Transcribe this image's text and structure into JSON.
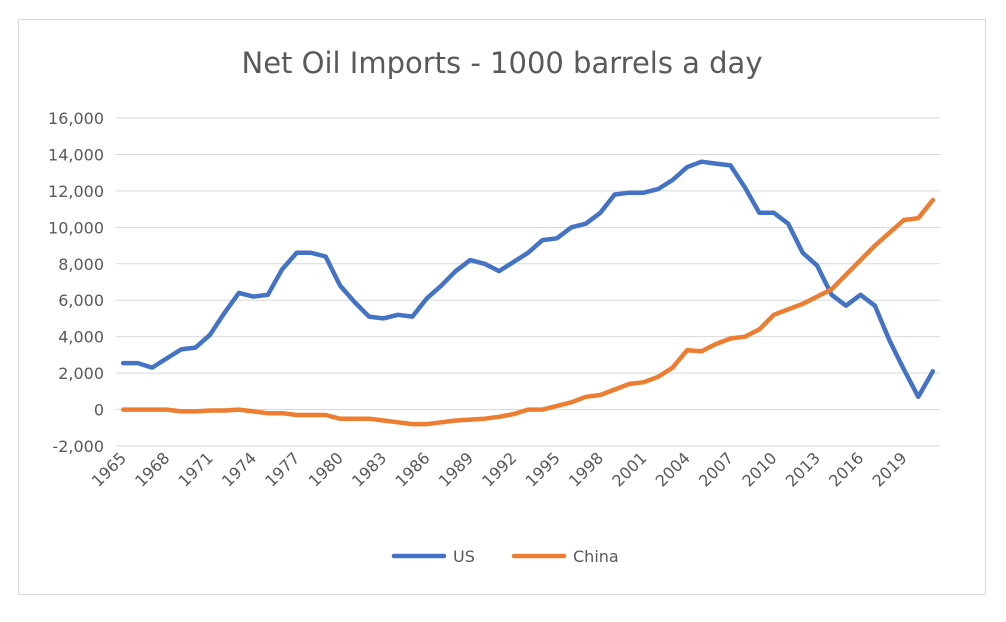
{
  "chart_data": {
    "type": "line",
    "title": "Net Oil Imports - 1000 barrels a day",
    "xlabel": "",
    "ylabel": "",
    "ylim": [
      -2000,
      16000
    ],
    "y_ticks": [
      "16,000",
      "14,000",
      "12,000",
      "10,000",
      "8,000",
      "6,000",
      "4,000",
      "2,000",
      "0",
      "-2,000"
    ],
    "x_tick_labels": [
      "1965",
      "1968",
      "1971",
      "1974",
      "1977",
      "1980",
      "1983",
      "1986",
      "1989",
      "1992",
      "1995",
      "1998",
      "2001",
      "2004",
      "2007",
      "2010",
      "2013",
      "2016",
      "2019"
    ],
    "grid": true,
    "legend_position": "bottom",
    "x": [
      1965,
      1966,
      1967,
      1968,
      1969,
      1970,
      1971,
      1972,
      1973,
      1974,
      1975,
      1976,
      1977,
      1978,
      1979,
      1980,
      1981,
      1982,
      1983,
      1984,
      1985,
      1986,
      1987,
      1988,
      1989,
      1990,
      1991,
      1992,
      1993,
      1994,
      1995,
      1996,
      1997,
      1998,
      1999,
      2000,
      2001,
      2002,
      2003,
      2004,
      2005,
      2006,
      2007,
      2008,
      2009,
      2010,
      2011,
      2012,
      2013,
      2014,
      2015,
      2016,
      2017,
      2018,
      2019,
      2020,
      2021
    ],
    "series": [
      {
        "name": "US",
        "color": "#4472C4",
        "values": [
          2550,
          2550,
          2300,
          2800,
          3300,
          3400,
          4100,
          5300,
          6400,
          6200,
          6300,
          7700,
          8600,
          8600,
          8400,
          6800,
          5900,
          5100,
          5000,
          5200,
          5100,
          6100,
          6800,
          7600,
          8200,
          8000,
          7600,
          8100,
          8600,
          9300,
          9400,
          10000,
          10200,
          10800,
          11800,
          11900,
          11900,
          12100,
          12600,
          13300,
          13600,
          13500,
          13400,
          12200,
          10800,
          10800,
          10200,
          8600,
          7900,
          6300,
          5700,
          6300,
          5700,
          3800,
          2200,
          700,
          2100
        ]
      },
      {
        "name": "China",
        "color": "#ED7D31",
        "values": [
          0,
          0,
          0,
          0,
          -100,
          -100,
          -50,
          -50,
          0,
          -100,
          -200,
          -200,
          -300,
          -300,
          -300,
          -500,
          -500,
          -500,
          -600,
          -700,
          -800,
          -800,
          -700,
          -600,
          -550,
          -500,
          -400,
          -250,
          0,
          0,
          200,
          400,
          700,
          800,
          1100,
          1400,
          1500,
          1800,
          2300,
          3250,
          3200,
          3600,
          3900,
          4000,
          4400,
          5200,
          5500,
          5800,
          6200,
          6600,
          7400,
          8200,
          9000,
          9700,
          10400,
          10500,
          11500
        ]
      }
    ]
  }
}
